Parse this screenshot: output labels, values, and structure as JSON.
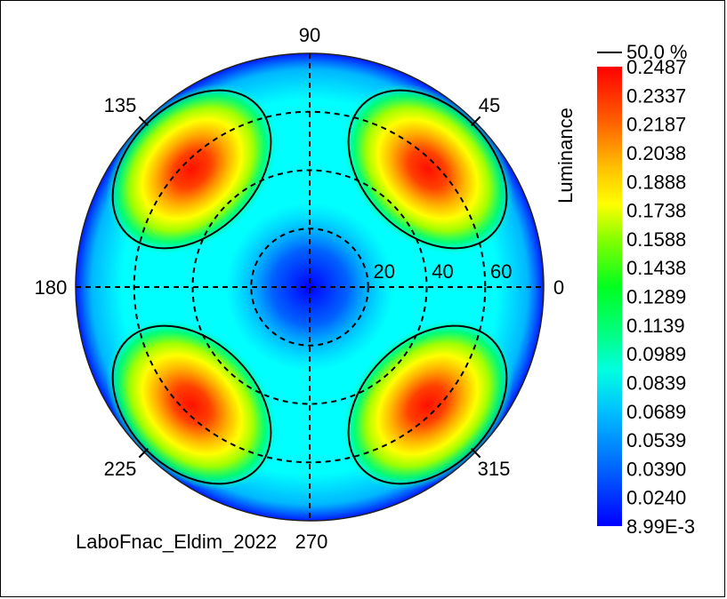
{
  "chart_data": {
    "type": "heatmap",
    "projection": "polar",
    "title": "",
    "caption": "LaboFnac_Eldim_2022",
    "azimuth_labels": [
      {
        "label": "0",
        "angle": 0
      },
      {
        "label": "45",
        "angle": 45
      },
      {
        "label": "90",
        "angle": 90
      },
      {
        "label": "135",
        "angle": 135
      },
      {
        "label": "180",
        "angle": 180
      },
      {
        "label": "225",
        "angle": 225
      },
      {
        "label": "270",
        "angle": 270
      },
      {
        "label": "315",
        "angle": 315
      }
    ],
    "radial_labels": [
      "20",
      "40",
      "60"
    ],
    "radial_ring_values": [
      20,
      40,
      60
    ],
    "radial_max": 80,
    "grid": true,
    "colorbar": {
      "label": "Luminance",
      "contour_label": "50.0 %",
      "ticks": [
        "0.2487",
        "0.2337",
        "0.2187",
        "0.2038",
        "0.1888",
        "0.1738",
        "0.1588",
        "0.1438",
        "0.1289",
        "0.1139",
        "0.0989",
        "0.0839",
        "0.0689",
        "0.0539",
        "0.0390",
        "0.0240",
        "8.99E-3"
      ],
      "min": 0.00899,
      "max": 0.2487,
      "colors": [
        "#0000ff",
        "#00a0ff",
        "#00ffff",
        "#00ff40",
        "#c0ff00",
        "#ffff00",
        "#ff9000",
        "#ff0000"
      ]
    },
    "peaks": [
      {
        "azimuth": 45,
        "inclination": 57,
        "value": 0.2487
      },
      {
        "azimuth": 135,
        "inclination": 57,
        "value": 0.2487
      },
      {
        "azimuth": 225,
        "inclination": 57,
        "value": 0.2487
      },
      {
        "azimuth": 315,
        "inclination": 57,
        "value": 0.2487
      }
    ],
    "center_value": 0.00899,
    "contour_level": 0.12435
  }
}
